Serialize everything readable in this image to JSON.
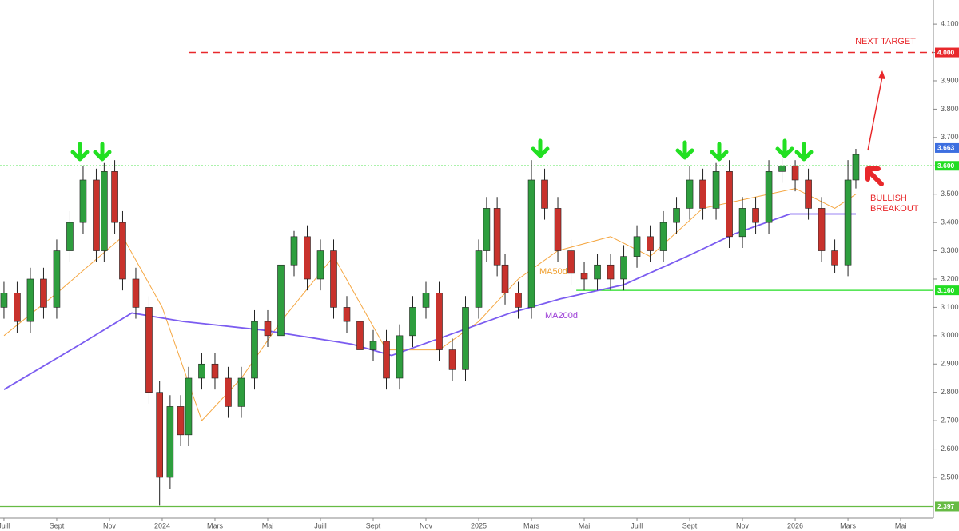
{
  "chart_data": {
    "type": "candlestick",
    "xlim": [
      -0.15,
      35.24
    ],
    "ylim": [
      2.356,
      4.185
    ],
    "xticks": [
      {
        "value": 0,
        "label": "Juill"
      },
      {
        "value": 2,
        "label": "Sept"
      },
      {
        "value": 4,
        "label": "Nov"
      },
      {
        "value": 6,
        "label": "2024"
      },
      {
        "value": 8,
        "label": "Mars"
      },
      {
        "value": 10,
        "label": "Mai"
      },
      {
        "value": 12,
        "label": "Juill"
      },
      {
        "value": 14,
        "label": "Sept"
      },
      {
        "value": 16,
        "label": "Nov"
      },
      {
        "value": 18,
        "label": "2025"
      },
      {
        "value": 20,
        "label": "Mars"
      },
      {
        "value": 22,
        "label": "Mai"
      },
      {
        "value": 24,
        "label": "Juill"
      },
      {
        "value": 26,
        "label": "Sept"
      },
      {
        "value": 28,
        "label": "Nov"
      },
      {
        "value": 30,
        "label": "2026"
      },
      {
        "value": 32,
        "label": "Mars"
      },
      {
        "value": 34,
        "label": "Mai"
      }
    ],
    "yticks": [
      {
        "value": 2.5,
        "label": "2.500"
      },
      {
        "value": 2.6,
        "label": "2.600"
      },
      {
        "value": 2.7,
        "label": "2.700"
      },
      {
        "value": 2.8,
        "label": "2.800"
      },
      {
        "value": 2.9,
        "label": "2.900"
      },
      {
        "value": 3.0,
        "label": "3.000"
      },
      {
        "value": 3.1,
        "label": "3.100"
      },
      {
        "value": 3.2,
        "label": "3.200"
      },
      {
        "value": 3.3,
        "label": "3.300"
      },
      {
        "value": 3.4,
        "label": "3.400"
      },
      {
        "value": 3.5,
        "label": "3.500"
      },
      {
        "value": 3.6,
        "label": "3.600"
      },
      {
        "value": 3.7,
        "label": "3.700"
      },
      {
        "value": 3.8,
        "label": "3.800"
      },
      {
        "value": 3.9,
        "label": "3.900"
      },
      {
        "value": 4.0,
        "label": "4.000"
      },
      {
        "value": 4.1,
        "label": "4.100"
      }
    ],
    "up_color": "#2e9e3e",
    "down_color": "#c8322c",
    "x": [
      0,
      0.5,
      1,
      1.5,
      2,
      2.5,
      3,
      3.5,
      3.8,
      4.2,
      4.5,
      5,
      5.5,
      5.9,
      6.3,
      6.7,
      7,
      7.5,
      8,
      8.5,
      9,
      9.5,
      10,
      10.5,
      11,
      11.5,
      12,
      12.5,
      13,
      13.5,
      14,
      14.5,
      15,
      15.5,
      16,
      16.5,
      17,
      17.5,
      18,
      18.3,
      18.7,
      19,
      19.5,
      20,
      20.5,
      21,
      21.5,
      22,
      22.5,
      23,
      23.5,
      24,
      24.5,
      25,
      25.5,
      26,
      26.5,
      27,
      27.5,
      28,
      28.5,
      29,
      29.5,
      30,
      30.5,
      31,
      31.5,
      32,
      32.3
    ],
    "open": [
      3.1,
      3.15,
      3.05,
      3.2,
      3.1,
      3.3,
      3.4,
      3.55,
      3.3,
      3.58,
      3.4,
      3.2,
      3.1,
      2.8,
      2.5,
      2.75,
      2.65,
      2.85,
      2.9,
      2.85,
      2.75,
      2.85,
      3.05,
      3.0,
      3.25,
      3.35,
      3.2,
      3.3,
      3.1,
      3.05,
      2.95,
      2.98,
      2.85,
      3.0,
      3.1,
      3.15,
      2.95,
      2.88,
      3.1,
      3.3,
      3.45,
      3.25,
      3.15,
      3.1,
      3.55,
      3.45,
      3.3,
      3.22,
      3.2,
      3.25,
      3.2,
      3.28,
      3.35,
      3.3,
      3.4,
      3.45,
      3.55,
      3.45,
      3.58,
      3.35,
      3.45,
      3.4,
      3.58,
      3.6,
      3.55,
      3.45,
      3.3,
      3.25,
      3.55
    ],
    "high": [
      3.19,
      3.19,
      3.24,
      3.24,
      3.34,
      3.44,
      3.6,
      3.59,
      3.61,
      3.62,
      3.44,
      3.24,
      3.14,
      2.84,
      2.79,
      2.79,
      2.89,
      2.94,
      2.94,
      2.89,
      2.89,
      3.09,
      3.09,
      3.29,
      3.37,
      3.39,
      3.34,
      3.34,
      3.14,
      3.09,
      3.02,
      3.02,
      3.04,
      3.14,
      3.19,
      3.19,
      2.99,
      3.14,
      3.34,
      3.49,
      3.49,
      3.29,
      3.19,
      3.62,
      3.59,
      3.49,
      3.34,
      3.26,
      3.29,
      3.29,
      3.32,
      3.39,
      3.39,
      3.44,
      3.49,
      3.6,
      3.59,
      3.61,
      3.62,
      3.49,
      3.49,
      3.62,
      3.63,
      3.62,
      3.59,
      3.49,
      3.34,
      3.62,
      3.66
    ],
    "low": [
      3.06,
      3.01,
      3.01,
      3.06,
      3.06,
      3.26,
      3.36,
      3.26,
      3.26,
      3.36,
      3.16,
      3.06,
      2.76,
      2.4,
      2.46,
      2.61,
      2.61,
      2.81,
      2.81,
      2.71,
      2.71,
      2.81,
      2.96,
      2.96,
      3.21,
      3.16,
      3.16,
      3.06,
      3.01,
      2.91,
      2.91,
      2.81,
      2.81,
      2.96,
      3.06,
      2.91,
      2.84,
      2.84,
      3.06,
      3.26,
      3.21,
      3.11,
      3.06,
      3.06,
      3.41,
      3.26,
      3.18,
      3.16,
      3.16,
      3.16,
      3.16,
      3.24,
      3.26,
      3.26,
      3.36,
      3.41,
      3.41,
      3.41,
      3.31,
      3.31,
      3.36,
      3.36,
      3.54,
      3.51,
      3.41,
      3.26,
      3.22,
      3.21,
      3.52
    ],
    "close": [
      3.15,
      3.05,
      3.2,
      3.1,
      3.3,
      3.4,
      3.55,
      3.3,
      3.58,
      3.4,
      3.2,
      3.1,
      2.8,
      2.5,
      2.75,
      2.65,
      2.85,
      2.9,
      2.85,
      2.75,
      2.85,
      3.05,
      3.0,
      3.25,
      3.35,
      3.2,
      3.3,
      3.1,
      3.05,
      2.95,
      2.98,
      2.85,
      3.0,
      3.1,
      3.15,
      2.95,
      2.88,
      3.1,
      3.3,
      3.45,
      3.25,
      3.15,
      3.1,
      3.55,
      3.45,
      3.3,
      3.22,
      3.2,
      3.25,
      3.2,
      3.28,
      3.35,
      3.3,
      3.4,
      3.45,
      3.55,
      3.45,
      3.58,
      3.35,
      3.45,
      3.4,
      3.58,
      3.6,
      3.55,
      3.45,
      3.3,
      3.25,
      3.55,
      3.64
    ],
    "lines": [
      {
        "name": "MA50d",
        "color": "#f5a742",
        "x": [
          0,
          2,
          4.5,
          6,
          7.5,
          9,
          10.5,
          12.5,
          14.5,
          16.5,
          18,
          19.5,
          21,
          23,
          24.5,
          26.5,
          28,
          30,
          31.5,
          32.3
        ],
        "values": [
          3.0,
          3.15,
          3.35,
          3.1,
          2.7,
          2.85,
          3.05,
          3.28,
          2.95,
          2.95,
          3.05,
          3.2,
          3.3,
          3.35,
          3.28,
          3.45,
          3.48,
          3.52,
          3.45,
          3.5
        ]
      },
      {
        "name": "MA200d",
        "color": "#7b5cf0",
        "x": [
          0,
          2.9,
          4.85,
          6.8,
          9.8,
          13.2,
          14.7,
          16.8,
          19.2,
          21.1,
          23.5,
          25.9,
          27.7,
          29.8,
          31.4,
          32.3
        ],
        "values": [
          2.81,
          2.97,
          3.08,
          3.05,
          3.02,
          2.97,
          2.93,
          3.0,
          3.08,
          3.13,
          3.18,
          3.28,
          3.36,
          3.43,
          3.43,
          3.43
        ]
      }
    ],
    "levels": [
      {
        "value": 4.0,
        "label": "4.000",
        "color": "#e8282b",
        "style": "dashed",
        "from": 7
      },
      {
        "value": 3.6,
        "label": "3.600",
        "color": "#22dd22",
        "style": "dotted"
      },
      {
        "value": 3.16,
        "label": "3.160",
        "color": "#22dd22",
        "style": "solid",
        "from": 21.7
      },
      {
        "value": 2.397,
        "label": "2.397",
        "color": "#66bb44",
        "style": "solid"
      }
    ],
    "last_price": {
      "value": 3.663,
      "label": "3.663",
      "color": "#3d6fe0"
    },
    "annotations": {
      "next_target": "NEXT TARGET",
      "breakout": [
        "BULLISH",
        "BREAKOUT"
      ]
    }
  }
}
